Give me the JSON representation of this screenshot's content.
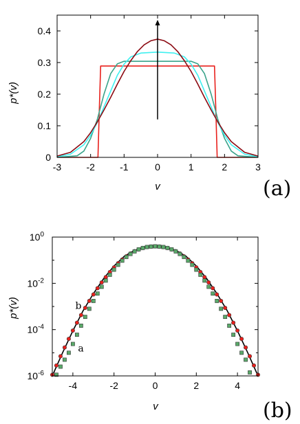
{
  "chart_data": [
    {
      "panel": "(a)",
      "type": "line",
      "xlabel": "v",
      "ylabel": "p*(v)",
      "xlim": [
        -3,
        3
      ],
      "ylim": [
        0,
        0.45
      ],
      "xticks": [
        -3,
        -2,
        -1,
        0,
        1,
        2,
        3
      ],
      "xtick_labels": [
        "-3",
        "-2",
        "-1",
        "0",
        "1",
        "2",
        "3"
      ],
      "yticks": [
        0,
        0.1,
        0.2,
        0.3,
        0.4
      ],
      "ytick_labels": [
        "0",
        "0.1",
        "0.2",
        "0.3",
        "0.4"
      ],
      "grid": false,
      "arrow": {
        "x": 0,
        "y_from": 0.12,
        "y_to": 0.435
      },
      "series": [
        {
          "color": "#e8201c",
          "x": [
            -3,
            -1.78,
            -1.74,
            -1.7,
            1.7,
            1.74,
            1.78,
            3
          ],
          "y": [
            0,
            0,
            0.15,
            0.289,
            0.289,
            0.15,
            0,
            0
          ]
        },
        {
          "color": "#3aa38a",
          "x": [
            -3,
            -2.4,
            -2.2,
            -2.0,
            -1.8,
            -1.6,
            -1.4,
            -1.2,
            -1.0,
            1.0,
            1.2,
            1.4,
            1.6,
            1.8,
            2.0,
            2.2,
            2.4,
            3
          ],
          "y": [
            0,
            0.005,
            0.02,
            0.06,
            0.12,
            0.2,
            0.265,
            0.296,
            0.304,
            0.304,
            0.296,
            0.265,
            0.2,
            0.12,
            0.06,
            0.02,
            0.005,
            0
          ]
        },
        {
          "color": "#3ff0f0",
          "x": [
            -3,
            -2.6,
            -2.2,
            -2.0,
            -1.8,
            -1.6,
            -1.4,
            -1.2,
            -1.0,
            -0.8,
            -0.5,
            0,
            0.5,
            0.8,
            1.0,
            1.2,
            1.4,
            1.6,
            1.8,
            2.0,
            2.2,
            2.6,
            3
          ],
          "y": [
            0.002,
            0.01,
            0.04,
            0.07,
            0.11,
            0.16,
            0.21,
            0.26,
            0.295,
            0.318,
            0.33,
            0.333,
            0.33,
            0.318,
            0.295,
            0.26,
            0.21,
            0.16,
            0.11,
            0.07,
            0.04,
            0.01,
            0.002
          ]
        },
        {
          "color": "#8b0a12",
          "x": [
            -3,
            -2.6,
            -2.2,
            -2.0,
            -1.8,
            -1.6,
            -1.4,
            -1.2,
            -1.0,
            -0.8,
            -0.6,
            -0.4,
            -0.2,
            0,
            0.2,
            0.4,
            0.6,
            0.8,
            1.0,
            1.2,
            1.4,
            1.6,
            1.8,
            2.0,
            2.2,
            2.6,
            3
          ],
          "y": [
            0.004,
            0.016,
            0.05,
            0.078,
            0.112,
            0.15,
            0.19,
            0.232,
            0.272,
            0.306,
            0.335,
            0.356,
            0.369,
            0.374,
            0.369,
            0.356,
            0.335,
            0.306,
            0.272,
            0.232,
            0.19,
            0.15,
            0.112,
            0.078,
            0.05,
            0.016,
            0.004
          ]
        }
      ]
    },
    {
      "panel": "(b)",
      "type": "scatter",
      "xlabel": "v",
      "ylabel": "p*(v)",
      "xlim": [
        -5,
        5
      ],
      "ylim": [
        -6,
        0
      ],
      "yscale": "log",
      "xticks": [
        -4,
        -2,
        0,
        2,
        4
      ],
      "xtick_labels": [
        "-4",
        "-2",
        "0",
        "2",
        "4"
      ],
      "yticks": [
        -6,
        -4,
        -2,
        0
      ],
      "ytick_base": "10",
      "ytick_exponents": [
        "-6",
        "-4",
        "-2",
        "0"
      ],
      "grid": false,
      "annotations": [
        {
          "text": "a",
          "x": -3.75,
          "y": -4.95
        },
        {
          "text": "b",
          "x": -3.88,
          "y": -3.1
        }
      ],
      "series": [
        {
          "type": "line",
          "color": "#000000",
          "x": [
            -5,
            -4.5,
            -4,
            -3.5,
            -3,
            -2.5,
            -2,
            -1.5,
            -1,
            -0.5,
            0,
            0.5,
            1,
            1.5,
            2,
            2.5,
            3,
            3.5,
            4,
            4.5,
            5
          ],
          "y": [
            -6.0,
            -5.0,
            -4.05,
            -3.18,
            -2.44,
            -1.79,
            -1.25,
            -0.83,
            -0.57,
            -0.44,
            -0.41,
            -0.44,
            -0.57,
            -0.83,
            -1.25,
            -1.79,
            -2.44,
            -3.18,
            -4.05,
            -5.0,
            -6.0
          ]
        },
        {
          "type": "scatter",
          "marker": "circle",
          "color": "#e8201c",
          "x": [
            -5.0,
            -4.8,
            -4.6,
            -4.4,
            -4.2,
            -4.0,
            -3.8,
            -3.6,
            -3.4,
            -3.2,
            -3.0,
            -2.8,
            -2.6,
            -2.4,
            -2.2,
            -2.0,
            -1.8,
            -1.6,
            -1.4,
            -1.2,
            -1.0,
            -0.8,
            -0.6,
            -0.4,
            -0.2,
            0.0,
            0.2,
            0.4,
            0.6,
            0.8,
            1.0,
            1.2,
            1.4,
            1.6,
            1.8,
            2.0,
            2.2,
            2.4,
            2.6,
            2.8,
            3.0,
            3.2,
            3.4,
            3.6,
            3.8,
            4.0,
            4.2,
            4.4,
            4.6,
            4.8,
            5.0
          ],
          "y": [
            -5.95,
            -5.55,
            -5.15,
            -4.77,
            -4.4,
            -4.04,
            -3.7,
            -3.37,
            -3.06,
            -2.76,
            -2.48,
            -2.21,
            -1.96,
            -1.73,
            -1.51,
            -1.31,
            -1.13,
            -0.97,
            -0.83,
            -0.71,
            -0.61,
            -0.53,
            -0.47,
            -0.43,
            -0.41,
            -0.4,
            -0.41,
            -0.43,
            -0.47,
            -0.53,
            -0.61,
            -0.71,
            -0.83,
            -0.97,
            -1.13,
            -1.31,
            -1.51,
            -1.73,
            -1.96,
            -2.21,
            -2.48,
            -2.76,
            -3.06,
            -3.37,
            -3.7,
            -4.04,
            -4.4,
            -4.77,
            -5.15,
            -5.55,
            -5.95
          ]
        },
        {
          "type": "scatter",
          "marker": "square",
          "color": "#5aaa6a",
          "x": [
            -4.8,
            -4.6,
            -4.4,
            -4.2,
            -4.0,
            -3.8,
            -3.6,
            -3.4,
            -3.2,
            -3.0,
            -2.8,
            -2.6,
            -2.4,
            -2.2,
            -2.0,
            -1.8,
            -1.6,
            -1.4,
            -1.2,
            -1.0,
            -0.8,
            -0.6,
            -0.4,
            -0.2,
            0.0,
            0.2,
            0.4,
            0.6,
            0.8,
            1.0,
            1.2,
            1.4,
            1.6,
            1.8,
            2.0,
            2.2,
            2.4,
            2.6,
            2.8,
            3.0,
            3.2,
            3.4,
            3.6,
            3.8,
            4.0,
            4.2,
            4.4,
            4.6
          ],
          "y": [
            -5.95,
            -5.6,
            -5.3,
            -5.0,
            -4.62,
            -4.22,
            -3.83,
            -3.45,
            -3.1,
            -2.76,
            -2.44,
            -2.15,
            -1.88,
            -1.63,
            -1.41,
            -1.2,
            -1.02,
            -0.86,
            -0.73,
            -0.62,
            -0.53,
            -0.47,
            -0.43,
            -0.41,
            -0.4,
            -0.41,
            -0.43,
            -0.47,
            -0.53,
            -0.62,
            -0.73,
            -0.86,
            -1.02,
            -1.2,
            -1.41,
            -1.63,
            -1.88,
            -2.15,
            -2.44,
            -2.76,
            -3.1,
            -3.45,
            -3.83,
            -4.22,
            -4.62,
            -5.0,
            -5.3,
            -5.85
          ]
        }
      ]
    }
  ]
}
